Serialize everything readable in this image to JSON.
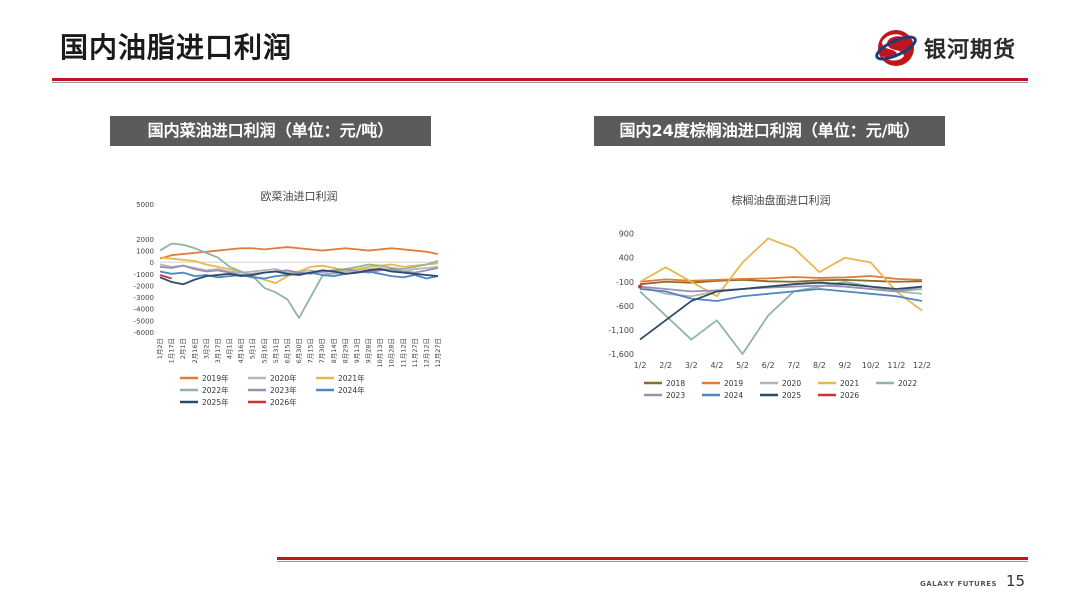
{
  "page": {
    "title": "国内油脂进口利润",
    "logo_text": "银河期货",
    "footer_brand": "GALAXY FUTURES",
    "page_number": "15",
    "colors": {
      "accent": "#c0151d",
      "section_bg": "#5b5b5b",
      "logo_blue": "#1a3e7a"
    }
  },
  "sections": {
    "left_title": "国内菜油进口利润（单位：元/吨）",
    "right_title": "国内24度棕榈油进口利润（单位：元/吨）"
  },
  "chart_data": [
    {
      "type": "line",
      "title": "欧菜油进口利润",
      "ylim": [
        -6000,
        5000
      ],
      "yticks": [
        5000,
        2000,
        1000,
        0,
        -1000,
        -2000,
        -3000,
        -4000,
        -5000,
        -6000
      ],
      "xtick_labels": [
        "1月2日",
        "1月17日",
        "2月1日",
        "2月16日",
        "3月2日",
        "3月17日",
        "4月1日",
        "4月16日",
        "5月1日",
        "5月16日",
        "5月31日",
        "6月15日",
        "6月30日",
        "7月15日",
        "7月30日",
        "8月14日",
        "8月29日",
        "9月13日",
        "9月28日",
        "10月13日",
        "10月28日",
        "11月12日",
        "11月27日",
        "12月12日",
        "12月27日"
      ],
      "legend_position": "bottom",
      "series": [
        {
          "name": "2019年",
          "color": "#e07b39",
          "values": [
            300,
            600,
            700,
            800,
            900,
            1000,
            1100,
            1200,
            1200,
            1100,
            1200,
            1300,
            1200,
            1100,
            1000,
            1100,
            1200,
            1100,
            1000,
            1100,
            1200,
            1100,
            1000,
            900,
            700
          ]
        },
        {
          "name": "2020年",
          "color": "#b5b5b5",
          "values": [
            -200,
            -400,
            -300,
            -500,
            -700,
            -600,
            -800,
            -900,
            -800,
            -700,
            -600,
            -900,
            -800,
            -700,
            -900,
            -1000,
            -800,
            -700,
            -600,
            -500,
            -700,
            -800,
            -600,
            -500,
            -400
          ]
        },
        {
          "name": "2021年",
          "color": "#e7b84a",
          "values": [
            400,
            300,
            200,
            100,
            -200,
            -400,
            -600,
            -800,
            -1200,
            -1500,
            -1800,
            -1200,
            -800,
            -400,
            -300,
            -500,
            -700,
            -600,
            -400,
            -300,
            -200,
            -400,
            -300,
            -200,
            -100
          ]
        },
        {
          "name": "2022年",
          "color": "#8fb6a2",
          "values": [
            1000,
            1600,
            1500,
            1200,
            800,
            400,
            -400,
            -800,
            -1200,
            -2200,
            -2600,
            -3200,
            -4800,
            -3000,
            -1200,
            -900,
            -600,
            -400,
            -200,
            -300,
            -500,
            -600,
            -400,
            -200,
            100
          ]
        },
        {
          "name": "2023年",
          "color": "#9a8fb0",
          "values": [
            -400,
            -500,
            -300,
            -600,
            -800,
            -700,
            -900,
            -1100,
            -1000,
            -900,
            -800,
            -700,
            -900,
            -1000,
            -800,
            -700,
            -600,
            -800,
            -900,
            -700,
            -600,
            -800,
            -900,
            -700,
            -500
          ]
        },
        {
          "name": "2024年",
          "color": "#4f86c6",
          "values": [
            -800,
            -1000,
            -900,
            -1200,
            -1100,
            -1300,
            -1200,
            -1100,
            -1300,
            -1400,
            -1200,
            -1100,
            -1000,
            -900,
            -1100,
            -1200,
            -1000,
            -900,
            -800,
            -1000,
            -1200,
            -1300,
            -1100,
            -1400,
            -1200
          ]
        },
        {
          "name": "2025年",
          "color": "#2e4a6b",
          "values": [
            -1300,
            -1700,
            -1900,
            -1500,
            -1200,
            -1100,
            -1000,
            -1200,
            -1100,
            -900,
            -800,
            -1000,
            -1100,
            -900,
            -700,
            -800,
            -1000,
            -900,
            -700,
            -600,
            -800,
            -900,
            -1000,
            -1100,
            -1200
          ]
        },
        {
          "name": "2026年",
          "color": "#d32f2f",
          "values": [
            -1100,
            -1400,
            null,
            null,
            null,
            null,
            null,
            null,
            null,
            null,
            null,
            null,
            null,
            null,
            null,
            null,
            null,
            null,
            null,
            null,
            null,
            null,
            null,
            null,
            null
          ]
        }
      ]
    },
    {
      "type": "line",
      "title": "棕榈油盘面进口利润",
      "ylim": [
        -1600,
        1100
      ],
      "yticks": [
        900,
        400,
        -100,
        -600,
        -1100,
        -1600
      ],
      "ytick_labels": [
        "900",
        "400",
        "-100",
        "-600",
        "-1,100",
        "-1,600"
      ],
      "x": [
        "1/2",
        "2/2",
        "3/2",
        "4/2",
        "5/2",
        "6/2",
        "7/2",
        "8/2",
        "9/2",
        "10/2",
        "11/2",
        "12/2"
      ],
      "legend_position": "bottom",
      "series": [
        {
          "name": "2018",
          "color": "#8a6d2b",
          "values": [
            -150,
            -100,
            -120,
            -80,
            -60,
            -90,
            -100,
            -70,
            -60,
            -80,
            -100,
            -90
          ]
        },
        {
          "name": "2019",
          "color": "#e07b39",
          "values": [
            -100,
            -50,
            -80,
            -60,
            -40,
            -30,
            0,
            -20,
            -10,
            20,
            -40,
            -60
          ]
        },
        {
          "name": "2020",
          "color": "#b5b5b5",
          "values": [
            -200,
            -350,
            -400,
            -300,
            -250,
            -200,
            -150,
            -100,
            -200,
            -250,
            -300,
            -350
          ]
        },
        {
          "name": "2021",
          "color": "#e7b84a",
          "values": [
            -100,
            200,
            -100,
            -400,
            300,
            800,
            600,
            100,
            400,
            300,
            -300,
            -700
          ]
        },
        {
          "name": "2022",
          "color": "#8fb6a2",
          "values": [
            -300,
            -800,
            -1300,
            -900,
            -1600,
            -800,
            -300,
            -200,
            -100,
            -200,
            -300,
            -250
          ]
        },
        {
          "name": "2023",
          "color": "#9a8fb0",
          "values": [
            -200,
            -250,
            -300,
            -280,
            -250,
            -220,
            -200,
            -180,
            -200,
            -250,
            -300,
            -200
          ]
        },
        {
          "name": "2024",
          "color": "#4f86c6",
          "values": [
            -250,
            -300,
            -450,
            -500,
            -400,
            -350,
            -300,
            -250,
            -300,
            -350,
            -400,
            -500
          ]
        },
        {
          "name": "2025",
          "color": "#2e4a6b",
          "values": [
            -1300,
            -900,
            -500,
            -300,
            -250,
            -200,
            -150,
            -120,
            -150,
            -200,
            -250,
            -200
          ]
        },
        {
          "name": "2026",
          "color": "#d32f2f",
          "values": [
            -200,
            null,
            null,
            null,
            null,
            null,
            null,
            null,
            null,
            null,
            null,
            null
          ]
        }
      ]
    }
  ]
}
